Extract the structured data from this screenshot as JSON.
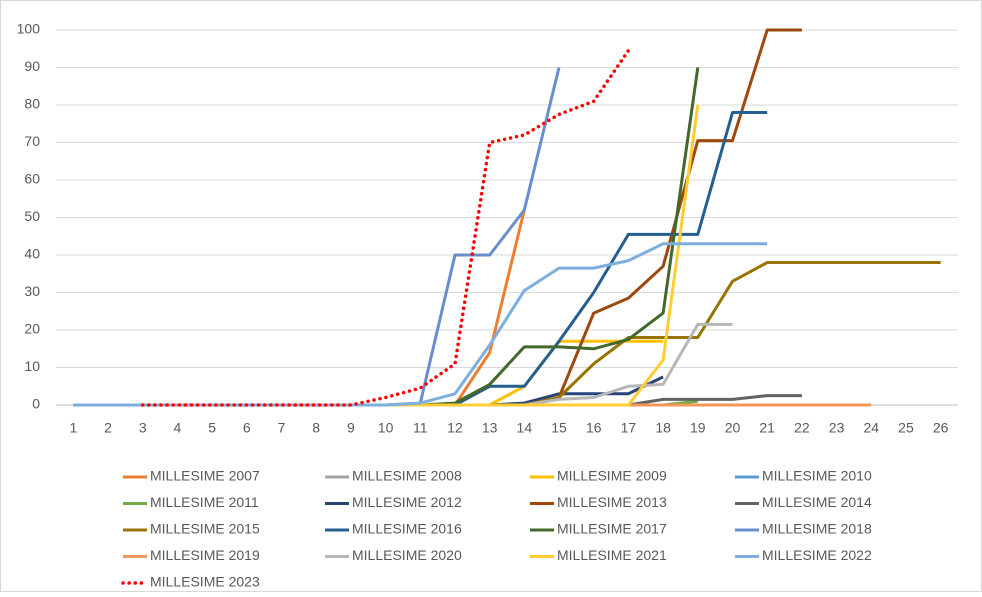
{
  "chart_data": {
    "type": "line",
    "categories": [
      "1",
      "2",
      "3",
      "4",
      "5",
      "6",
      "7",
      "8",
      "9",
      "10",
      "11",
      "12",
      "13",
      "14",
      "15",
      "16",
      "17",
      "18",
      "19",
      "20",
      "21",
      "22",
      "23",
      "24",
      "25",
      "26"
    ],
    "ylim": [
      0,
      100
    ],
    "yticks": [
      0,
      10,
      20,
      30,
      40,
      50,
      60,
      70,
      80,
      90,
      100
    ],
    "grid": true,
    "legend": "bottom",
    "series": [
      {
        "name": "MILLESIME 2007",
        "color": "#ed7d31",
        "values": [
          0,
          0,
          0,
          0,
          0,
          0,
          0,
          0,
          0,
          0,
          0,
          0,
          14,
          52,
          null,
          null,
          null,
          null,
          null,
          null,
          null,
          null,
          null,
          null,
          null,
          null
        ]
      },
      {
        "name": "MILLESIME 2008",
        "color": "#a5a5a5",
        "values": [
          0,
          0,
          0,
          0,
          0,
          0,
          0,
          0,
          0,
          0,
          0,
          0,
          0,
          0,
          0,
          0,
          0,
          0,
          0,
          null,
          null,
          null,
          null,
          null,
          null,
          null
        ]
      },
      {
        "name": "MILLESIME 2009",
        "color": "#ffc000",
        "values": [
          0,
          0,
          0,
          0,
          0,
          0,
          0,
          0,
          0,
          0,
          0,
          0,
          0,
          5,
          17,
          17,
          17,
          17,
          null,
          null,
          null,
          null,
          null,
          null,
          null,
          null
        ]
      },
      {
        "name": "MILLESIME 2010",
        "color": "#5b9bd5",
        "values": [
          0,
          0,
          0,
          0,
          0,
          0,
          0,
          0,
          0,
          0,
          0,
          0,
          0,
          0,
          0,
          0,
          0,
          0,
          0,
          null,
          null,
          null,
          null,
          null,
          null,
          null
        ]
      },
      {
        "name": "MILLESIME 2011",
        "color": "#70ad47",
        "values": [
          0,
          0,
          0,
          0,
          0,
          0,
          0,
          0,
          0,
          0,
          0,
          0,
          0,
          0,
          0,
          0,
          0,
          0,
          1,
          null,
          null,
          null,
          null,
          null,
          null,
          null
        ]
      },
      {
        "name": "MILLESIME 2012",
        "color": "#264478",
        "values": [
          0,
          0,
          0,
          0,
          0,
          0,
          0,
          0,
          0,
          0,
          0,
          0,
          0,
          0.5,
          3,
          3,
          3,
          7.5,
          null,
          null,
          null,
          null,
          null,
          null,
          null,
          null
        ]
      },
      {
        "name": "MILLESIME 2013",
        "color": "#9e480e",
        "values": [
          0,
          0,
          0,
          0,
          0,
          0,
          0,
          0,
          0,
          0,
          0,
          0,
          0,
          0,
          2,
          24.5,
          28.5,
          37,
          70.5,
          70.5,
          100,
          100,
          null,
          null,
          null,
          null
        ]
      },
      {
        "name": "MILLESIME 2014",
        "color": "#636363",
        "values": [
          0,
          0,
          0,
          0,
          0,
          0,
          0,
          0,
          0,
          0,
          0,
          0,
          0,
          0,
          0,
          0,
          0,
          1.5,
          1.5,
          1.5,
          2.5,
          2.5,
          null,
          null,
          null,
          null
        ]
      },
      {
        "name": "MILLESIME 2015",
        "color": "#997300",
        "values": [
          0,
          0,
          0,
          0,
          0,
          0,
          0,
          0,
          0,
          0,
          0,
          0,
          0,
          0,
          2,
          11,
          18,
          18,
          18,
          33,
          38,
          38,
          38,
          38,
          38,
          38
        ]
      },
      {
        "name": "MILLESIME 2016",
        "color": "#255e91",
        "values": [
          0,
          0,
          0,
          0,
          0,
          0,
          0,
          0,
          0,
          0,
          0,
          0,
          5,
          5,
          17,
          30,
          45.5,
          45.5,
          45.5,
          78,
          78,
          null,
          null,
          null,
          null,
          null
        ]
      },
      {
        "name": "MILLESIME 2017",
        "color": "#43682b",
        "values": [
          0,
          0,
          0,
          0,
          0,
          0,
          0,
          0,
          0,
          0,
          0,
          0.5,
          5.5,
          15.5,
          15.5,
          15,
          17.5,
          24.5,
          90,
          null,
          null,
          null,
          null,
          null,
          null,
          null
        ]
      },
      {
        "name": "MILLESIME 2018",
        "color": "#698ed0",
        "values": [
          0,
          0,
          0,
          0,
          0,
          0,
          0,
          0,
          0,
          0,
          0.5,
          40,
          40,
          52,
          90,
          null,
          null,
          null,
          null,
          null,
          null,
          null,
          null,
          null,
          null,
          null
        ]
      },
      {
        "name": "MILLESIME 2019",
        "color": "#f1975a",
        "values": [
          0,
          0,
          0,
          0,
          0,
          0,
          0,
          0,
          0,
          0,
          0,
          0,
          0,
          0,
          0,
          0,
          0,
          0,
          0,
          0,
          0,
          0,
          0,
          0,
          null,
          null
        ]
      },
      {
        "name": "MILLESIME 2020",
        "color": "#b7b7b7",
        "values": [
          0,
          0,
          0,
          0,
          0,
          0,
          0,
          0,
          0,
          0,
          0,
          0,
          0,
          0,
          1.5,
          2,
          5,
          5.5,
          21.5,
          21.5,
          null,
          null,
          null,
          null,
          null,
          null
        ]
      },
      {
        "name": "MILLESIME 2021",
        "color": "#ffcd33",
        "values": [
          0,
          0,
          0,
          0,
          0,
          0,
          0,
          0,
          0,
          0,
          0,
          0,
          0,
          0,
          0,
          0,
          0,
          12,
          80,
          null,
          null,
          null,
          null,
          null,
          null,
          null
        ]
      },
      {
        "name": "MILLESIME 2022",
        "color": "#7cafdd",
        "values": [
          0,
          0,
          0,
          0,
          0,
          0,
          0,
          0,
          0,
          0,
          0.5,
          3,
          16,
          30.5,
          36.5,
          36.5,
          38.5,
          43,
          43,
          43,
          43,
          null,
          null,
          null,
          null,
          null
        ]
      },
      {
        "name": "MILLESIME 2023",
        "color": "#ff0000",
        "line_style": "dotted",
        "values": [
          null,
          null,
          0,
          0,
          0,
          0,
          0,
          0,
          0,
          2,
          4.5,
          11,
          70,
          72,
          77.5,
          81,
          94.5,
          null,
          null,
          null,
          null,
          null,
          null,
          null,
          null,
          null
        ]
      }
    ]
  }
}
